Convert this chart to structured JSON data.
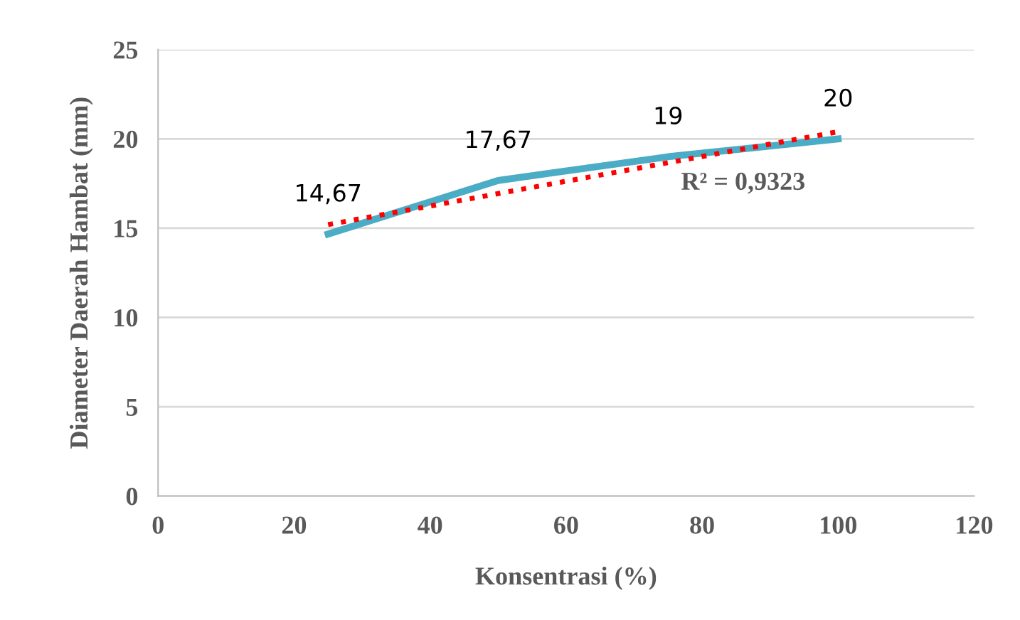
{
  "chart_data": {
    "type": "line",
    "xlabel": "Konsentrasi (%)",
    "ylabel": "Diameter Daerah Hambat (mm)",
    "xlim": [
      0,
      120
    ],
    "xticks": [
      0,
      20,
      40,
      60,
      80,
      100,
      120
    ],
    "ylim": [
      0,
      25
    ],
    "yticks": [
      0,
      5,
      10,
      15,
      20,
      25
    ],
    "grid": "y",
    "series": [
      {
        "x": [
          25,
          50,
          75,
          100
        ],
        "values": [
          14.67,
          17.67,
          19,
          20
        ],
        "color": "#4bacc6",
        "value_labels": [
          "14,67",
          "17,67",
          "19",
          "20"
        ]
      },
      {
        "x": [
          25,
          100
        ],
        "values": [
          15.2,
          20.4
        ],
        "color": "#ff0000",
        "line_style": "dotted"
      }
    ],
    "annotations": [
      "R² = 0,9323"
    ]
  }
}
